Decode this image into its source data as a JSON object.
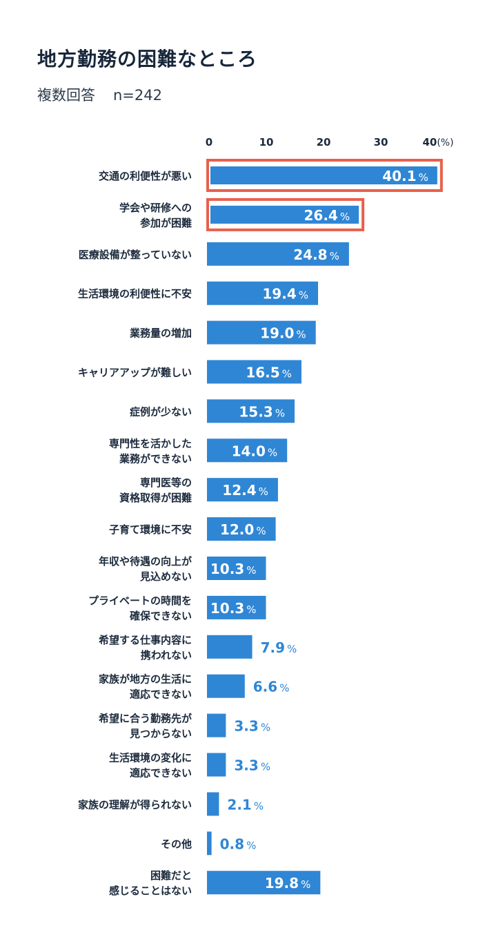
{
  "header": {
    "title": "地方勤務の困難なところ",
    "subtitle": "複数回答",
    "sample": "n=242"
  },
  "colors": {
    "bar": "#2f86d4",
    "highlight": "#e8604c",
    "label_inside": "#ffffff",
    "label_outside": "#2f86d4"
  },
  "chart_data": {
    "type": "bar",
    "orientation": "horizontal",
    "unit": "%",
    "xlim": [
      0,
      40
    ],
    "ticks": [
      "0",
      "10",
      "20",
      "30",
      "40"
    ],
    "tick_unit": "(%)",
    "categories": [
      [
        "交通の利便性が悪い"
      ],
      [
        "学会や研修への",
        "参加が困難"
      ],
      [
        "医療設備が整っていない"
      ],
      [
        "生活環境の利便性に不安"
      ],
      [
        "業務量の増加"
      ],
      [
        "キャリアアップが難しい"
      ],
      [
        "症例が少ない"
      ],
      [
        "専門性を活かした",
        "業務ができない"
      ],
      [
        "専門医等の",
        "資格取得が困難"
      ],
      [
        "子育て環境に不安"
      ],
      [
        "年収や待遇の向上が",
        "見込めない"
      ],
      [
        "プライベートの時間を",
        "確保できない"
      ],
      [
        "希望する仕事内容に",
        "携われない"
      ],
      [
        "家族が地方の生活に",
        "適応できない"
      ],
      [
        "希望に合う勤務先が",
        "見つからない"
      ],
      [
        "生活環境の変化に",
        "適応できない"
      ],
      [
        "家族の理解が得られない"
      ],
      [
        "その他"
      ],
      [
        "困難だと",
        "感じることはない"
      ]
    ],
    "values": [
      40.1,
      26.4,
      24.8,
      19.4,
      19.0,
      16.5,
      15.3,
      14.0,
      12.4,
      12.0,
      10.3,
      10.3,
      7.9,
      6.6,
      3.3,
      3.3,
      2.1,
      0.8,
      19.8
    ],
    "value_labels": [
      "40.1",
      "26.4",
      "24.8",
      "19.4",
      "19.0",
      "16.5",
      "15.3",
      "14.0",
      "12.4",
      "12.0",
      "10.3",
      "10.3",
      "7.9",
      "6.6",
      "3.3",
      "3.3",
      "2.1",
      "0.8",
      "19.8"
    ],
    "highlighted": [
      0,
      1
    ]
  }
}
